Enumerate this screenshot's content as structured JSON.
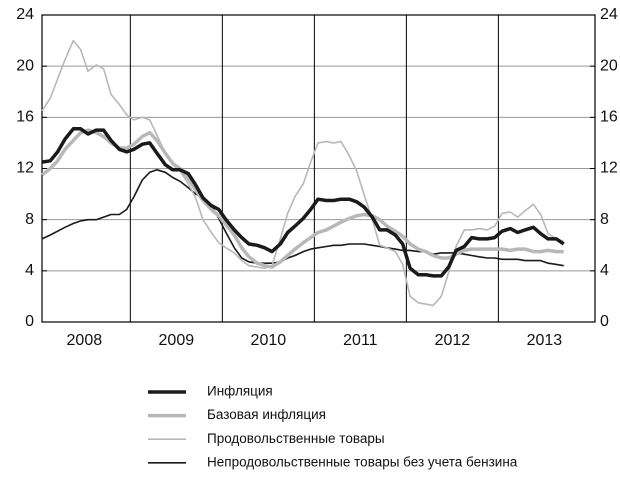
{
  "chart_data": {
    "type": "line",
    "x": [
      2008.04,
      2008.13,
      2008.21,
      2008.29,
      2008.38,
      2008.46,
      2008.54,
      2008.63,
      2008.71,
      2008.79,
      2008.88,
      2008.96,
      2009.04,
      2009.13,
      2009.21,
      2009.29,
      2009.38,
      2009.46,
      2009.54,
      2009.63,
      2009.71,
      2009.79,
      2009.88,
      2009.96,
      2010.04,
      2010.13,
      2010.21,
      2010.29,
      2010.38,
      2010.46,
      2010.54,
      2010.63,
      2010.71,
      2010.79,
      2010.88,
      2010.96,
      2011.04,
      2011.13,
      2011.21,
      2011.29,
      2011.38,
      2011.46,
      2011.54,
      2011.63,
      2011.71,
      2011.79,
      2011.88,
      2011.96,
      2012.04,
      2012.13,
      2012.21,
      2012.29,
      2012.38,
      2012.46,
      2012.54,
      2012.63,
      2012.71,
      2012.79,
      2012.88,
      2012.96,
      2013.04,
      2013.13,
      2013.21,
      2013.29,
      2013.38,
      2013.46,
      2013.54,
      2013.63,
      2013.71
    ],
    "series": [
      {
        "name": "Инфляция",
        "color": "#1a1a1a",
        "line_width": 3.5,
        "values": [
          12.5,
          12.6,
          13.3,
          14.3,
          15.1,
          15.1,
          14.7,
          15.0,
          15.0,
          14.2,
          13.5,
          13.3,
          13.5,
          13.9,
          14.0,
          13.2,
          12.3,
          11.9,
          11.9,
          11.6,
          10.7,
          9.7,
          9.1,
          8.8,
          8.0,
          7.2,
          6.6,
          6.1,
          6.0,
          5.8,
          5.5,
          6.1,
          7.0,
          7.5,
          8.1,
          8.8,
          9.6,
          9.5,
          9.5,
          9.6,
          9.6,
          9.4,
          9.0,
          8.2,
          7.2,
          7.2,
          6.8,
          6.1,
          4.2,
          3.7,
          3.7,
          3.6,
          3.6,
          4.3,
          5.6,
          5.9,
          6.6,
          6.5,
          6.5,
          6.6,
          7.1,
          7.3,
          7.0,
          7.2,
          7.4,
          6.9,
          6.5,
          6.5,
          6.1
        ]
      },
      {
        "name": "Базовая инфляция",
        "color": "#b8b8b8",
        "line_width": 3.5,
        "values": [
          11.5,
          12.0,
          12.6,
          13.5,
          14.2,
          14.8,
          15.0,
          14.8,
          14.5,
          14.0,
          13.6,
          13.6,
          13.9,
          14.5,
          14.8,
          14.2,
          13.2,
          12.4,
          12.0,
          11.2,
          10.3,
          9.5,
          8.8,
          8.3,
          7.6,
          6.8,
          5.8,
          5.1,
          4.6,
          4.4,
          4.3,
          4.7,
          5.2,
          5.7,
          6.2,
          6.6,
          7.0,
          7.2,
          7.5,
          7.8,
          8.1,
          8.3,
          8.4,
          8.3,
          8.0,
          7.5,
          7.1,
          6.7,
          6.1,
          5.7,
          5.5,
          5.2,
          5.0,
          5.0,
          5.3,
          5.6,
          5.7,
          5.7,
          5.7,
          5.7,
          5.7,
          5.6,
          5.7,
          5.7,
          5.5,
          5.5,
          5.6,
          5.5,
          5.5
        ]
      },
      {
        "name": "Продовольственные товары",
        "color": "#b8b8b8",
        "line_width": 1.6,
        "values": [
          16.5,
          17.5,
          19.0,
          20.5,
          22.0,
          21.3,
          19.6,
          20.1,
          19.8,
          17.8,
          17.0,
          16.2,
          15.8,
          16.0,
          15.8,
          14.6,
          13.2,
          12.3,
          11.8,
          10.8,
          9.7,
          8.0,
          7.0,
          6.2,
          5.8,
          5.4,
          4.8,
          4.4,
          4.3,
          4.2,
          4.4,
          6.5,
          8.5,
          9.8,
          10.8,
          12.5,
          14.0,
          14.1,
          14.0,
          14.1,
          13.0,
          11.8,
          10.0,
          8.0,
          6.0,
          5.8,
          5.5,
          4.5,
          2.0,
          1.5,
          1.4,
          1.3,
          2.0,
          3.9,
          5.9,
          7.2,
          7.2,
          7.3,
          7.2,
          7.5,
          8.5,
          8.6,
          8.2,
          8.7,
          9.2,
          8.4,
          6.9,
          6.5,
          6.3
        ]
      },
      {
        "name": "Непродовольственные товары без учета бензина",
        "color": "#1a1a1a",
        "line_width": 1.6,
        "values": [
          6.5,
          6.8,
          7.1,
          7.4,
          7.7,
          7.9,
          8.0,
          8.0,
          8.2,
          8.4,
          8.4,
          8.8,
          9.8,
          11.1,
          11.7,
          11.9,
          11.7,
          11.3,
          11.0,
          10.5,
          10.0,
          9.7,
          9.1,
          8.1,
          7.0,
          5.8,
          5.0,
          4.7,
          4.6,
          4.6,
          4.6,
          4.7,
          5.0,
          5.2,
          5.5,
          5.7,
          5.8,
          5.9,
          6.0,
          6.0,
          6.1,
          6.1,
          6.1,
          6.0,
          5.9,
          5.8,
          5.7,
          5.6,
          5.6,
          5.5,
          5.5,
          5.3,
          5.4,
          5.4,
          5.4,
          5.3,
          5.2,
          5.1,
          5.0,
          5.0,
          4.9,
          4.9,
          4.9,
          4.8,
          4.8,
          4.8,
          4.6,
          4.5,
          4.4
        ]
      }
    ],
    "xlim": [
      2008.04,
      2014.05
    ],
    "xticks": [
      {
        "value": 2008.5,
        "label": "2008"
      },
      {
        "value": 2009.5,
        "label": "2009"
      },
      {
        "value": 2010.5,
        "label": "2010"
      },
      {
        "value": 2011.5,
        "label": "2011"
      },
      {
        "value": 2012.5,
        "label": "2012"
      },
      {
        "value": 2013.5,
        "label": "2013"
      }
    ],
    "xgrid": [
      2009,
      2010,
      2011,
      2012,
      2013
    ],
    "ylim": [
      0,
      24
    ],
    "yticks": [
      0,
      4,
      8,
      12,
      16,
      20,
      24
    ],
    "y2lim": [
      0,
      24
    ],
    "y2ticks": [
      0,
      4,
      8,
      12,
      16,
      20,
      24
    ],
    "grid": true,
    "legend": "bottom"
  }
}
